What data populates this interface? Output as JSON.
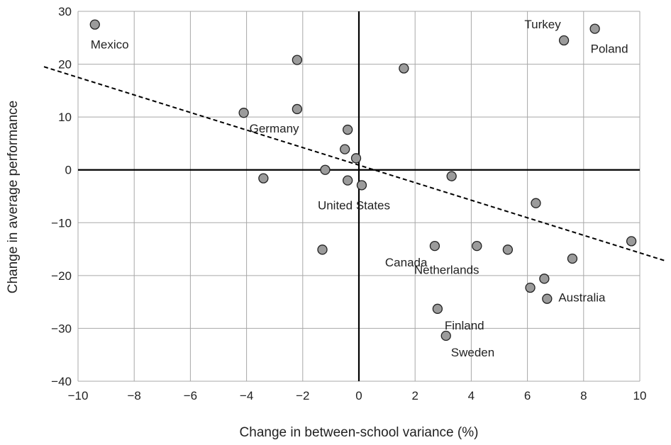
{
  "chart_data": {
    "type": "scatter",
    "title": "",
    "xlabel": "Change in between-school variance (%)",
    "ylabel": "Change in average performance",
    "xlim": [
      -10,
      10
    ],
    "ylim": [
      -40,
      30
    ],
    "xticks": [
      -10,
      -8,
      -6,
      -4,
      -2,
      0,
      2,
      4,
      6,
      8,
      10
    ],
    "yticks": [
      -40,
      -30,
      -20,
      -10,
      0,
      10,
      20,
      30
    ],
    "xtick_labels": [
      "−10",
      "−8",
      "−6",
      "−4",
      "−2",
      "0",
      "2",
      "4",
      "6",
      "8",
      "10"
    ],
    "ytick_labels": [
      "−40",
      "−30",
      "−20",
      "−10",
      "0",
      "10",
      "20",
      "30"
    ],
    "grid": true,
    "trendline": {
      "style": "dashed",
      "x": [
        -10,
        10.9
      ],
      "y": [
        17.5,
        -17.2
      ]
    },
    "points": [
      {
        "x": -9.4,
        "y": 27.5,
        "label": "Mexico"
      },
      {
        "x": 7.3,
        "y": 24.5,
        "label": "Turkey"
      },
      {
        "x": 8.4,
        "y": 26.7,
        "label": "Poland"
      },
      {
        "x": -4.1,
        "y": 10.8,
        "label": "Germany"
      },
      {
        "x": 0.1,
        "y": -2.9,
        "label": "United States"
      },
      {
        "x": 2.7,
        "y": -14.4,
        "label": "Canada"
      },
      {
        "x": 5.3,
        "y": -15.1,
        "label": "Netherlands"
      },
      {
        "x": 6.7,
        "y": -24.4,
        "label": "Australia"
      },
      {
        "x": 2.8,
        "y": -26.3,
        "label": "Finland"
      },
      {
        "x": 3.1,
        "y": -31.4,
        "label": "Sweden"
      },
      {
        "x": -2.2,
        "y": 20.8,
        "label": ""
      },
      {
        "x": 1.6,
        "y": 19.2,
        "label": ""
      },
      {
        "x": -2.2,
        "y": 11.5,
        "label": ""
      },
      {
        "x": -0.4,
        "y": 7.6,
        "label": ""
      },
      {
        "x": -0.5,
        "y": 3.9,
        "label": ""
      },
      {
        "x": -0.1,
        "y": 2.2,
        "label": ""
      },
      {
        "x": -1.2,
        "y": 0.0,
        "label": ""
      },
      {
        "x": -3.4,
        "y": -1.6,
        "label": ""
      },
      {
        "x": -0.4,
        "y": -2.0,
        "label": ""
      },
      {
        "x": 3.3,
        "y": -1.2,
        "label": ""
      },
      {
        "x": 6.3,
        "y": -6.3,
        "label": ""
      },
      {
        "x": 9.7,
        "y": -13.5,
        "label": ""
      },
      {
        "x": -1.3,
        "y": -15.1,
        "label": ""
      },
      {
        "x": 4.2,
        "y": -14.4,
        "label": ""
      },
      {
        "x": 7.6,
        "y": -16.8,
        "label": ""
      },
      {
        "x": 6.6,
        "y": -20.6,
        "label": ""
      },
      {
        "x": 6.1,
        "y": -22.3,
        "label": ""
      }
    ]
  }
}
